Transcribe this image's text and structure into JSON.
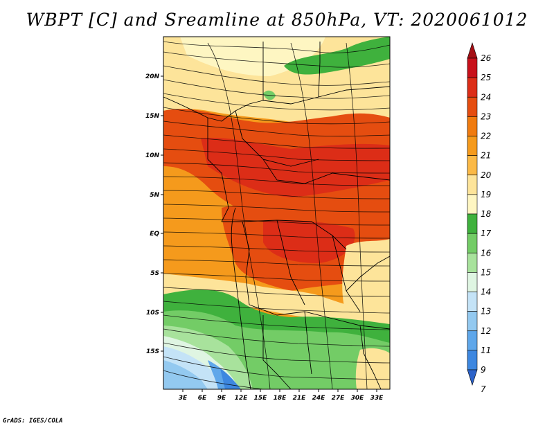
{
  "title": "WBPT [C] and Sreamline at 850hPa, VT: 2020061012",
  "credit": "GrADS: IGES/COLA",
  "map": {
    "lat_labels": [
      "20N",
      "15N",
      "10N",
      "5N",
      "EQ",
      "5S",
      "10S",
      "15S"
    ],
    "lon_labels": [
      "3E",
      "6E",
      "9E",
      "12E",
      "15E",
      "18E",
      "21E",
      "24E",
      "27E",
      "30E",
      "33E"
    ]
  },
  "colorbar": {
    "labels": [
      "26",
      "25",
      "24",
      "23",
      "22",
      "21",
      "20",
      "19",
      "18",
      "17",
      "16",
      "15",
      "14",
      "13",
      "12",
      "11",
      "9",
      "7"
    ],
    "colors": [
      "#a50f15",
      "#c8101a",
      "#dc2d17",
      "#e54d10",
      "#f07b0f",
      "#f59a1c",
      "#fbb946",
      "#fde49a",
      "#fef6c2",
      "#3fb13d",
      "#73cc66",
      "#a8e29c",
      "#dff5e2",
      "#c4e3f7",
      "#93c9f0",
      "#5fa7ea",
      "#3d87e0",
      "#2b62c9"
    ]
  }
}
